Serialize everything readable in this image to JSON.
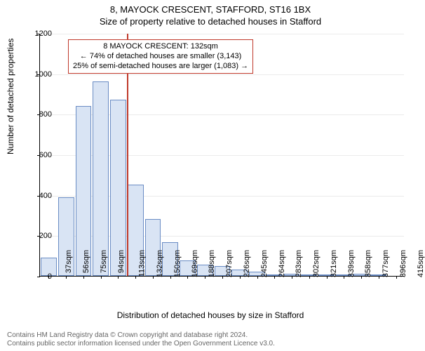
{
  "title_main": "8, MAYOCK CRESCENT, STAFFORD, ST16 1BX",
  "title_sub": "Size of property relative to detached houses in Stafford",
  "y_axis_label": "Number of detached properties",
  "x_axis_label": "Distribution of detached houses by size in Stafford",
  "footer_line1": "Contains HM Land Registry data © Crown copyright and database right 2024.",
  "footer_line2": "Contains public sector information licensed under the Open Government Licence v3.0.",
  "chart": {
    "type": "histogram",
    "ylim": [
      0,
      1200
    ],
    "ytick_step": 200,
    "background_color": "#ffffff",
    "grid_color": "#e6e6e6",
    "bar_fill": "#d9e4f4",
    "bar_stroke": "#6a8cc4",
    "marker_color": "#c0392b",
    "marker_x_index": 5,
    "title_fontsize": 13,
    "label_fontsize": 12,
    "tick_fontsize": 11,
    "categories": [
      "37sqm",
      "56sqm",
      "75sqm",
      "94sqm",
      "113sqm",
      "132sqm",
      "150sqm",
      "169sqm",
      "188sqm",
      "207sqm",
      "226sqm",
      "245sqm",
      "264sqm",
      "283sqm",
      "302sqm",
      "321sqm",
      "339sqm",
      "358sqm",
      "377sqm",
      "396sqm",
      "415sqm"
    ],
    "values": [
      90,
      390,
      840,
      960,
      870,
      450,
      280,
      165,
      75,
      55,
      50,
      30,
      20,
      6,
      10,
      4,
      4,
      4,
      12,
      4,
      0
    ]
  },
  "annotation": {
    "line1": "8 MAYOCK CRESCENT: 132sqm",
    "line2": "← 74% of detached houses are smaller (3,143)",
    "line3": "25% of semi-detached houses are larger (1,083) →"
  }
}
